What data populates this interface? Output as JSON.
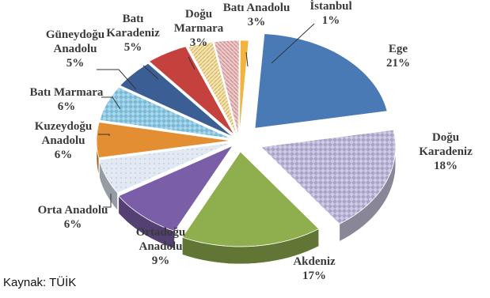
{
  "chart_data": {
    "type": "pie",
    "title": "",
    "slices": [
      {
        "label": "Ege",
        "value": 21,
        "value_label": "21%",
        "color": "#4a7ab5"
      },
      {
        "label": "Doğu Karadeniz",
        "value": 18,
        "value_label": "18%",
        "color": "#c9c5de"
      },
      {
        "label": "Akdeniz",
        "value": 17,
        "value_label": "17%",
        "color": "#8fae4d"
      },
      {
        "label": "Ortadoğu Anadolu",
        "value": 9,
        "value_label": "9%",
        "color": "#7b5ea8"
      },
      {
        "label": "Orta Anadolu",
        "value": 6,
        "value_label": "6%",
        "color": "#dde5f1"
      },
      {
        "label": "Kuzeydoğu Anadolu",
        "value": 6,
        "value_label": "6%",
        "color": "#e48e33"
      },
      {
        "label": "Batı Marmara",
        "value": 6,
        "value_label": "6%",
        "color": "#9fd0e5"
      },
      {
        "label": "Güneydoğu Anadolu",
        "value": 5,
        "value_label": "5%",
        "color": "#3b5e95"
      },
      {
        "label": "Batı Karadeniz",
        "value": 5,
        "value_label": "5%",
        "color": "#c4413e"
      },
      {
        "label": "Doğu Marmara",
        "value": 3,
        "value_label": "3%",
        "color": "#f4e0a8"
      },
      {
        "label": "Batı Anadolu",
        "value": 3,
        "value_label": "3%",
        "color": "#e8c3c3"
      },
      {
        "label": "İstanbul",
        "value": 1,
        "value_label": "1%",
        "color": "#f3b33f"
      }
    ]
  },
  "source_text": "Kaynak: TÜİK"
}
